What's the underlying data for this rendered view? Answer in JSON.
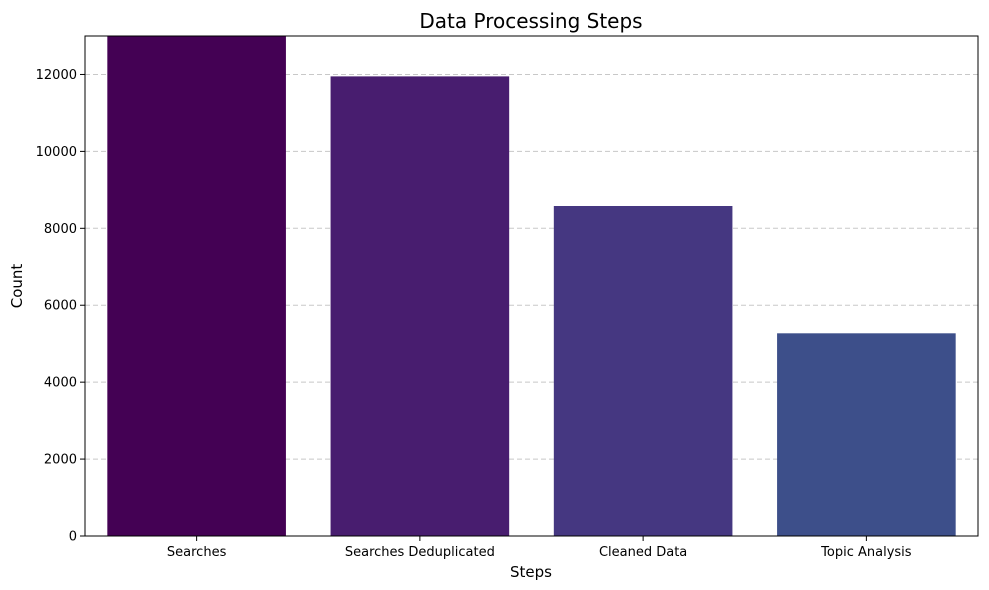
{
  "chart_data": {
    "type": "bar",
    "title": "Data Processing Steps",
    "xlabel": "Steps",
    "ylabel": "Count",
    "categories": [
      "Searches",
      "Searches Deduplicated",
      "Cleaned Data",
      "Topic Analysis"
    ],
    "values": [
      13000,
      11950,
      8580,
      5270
    ],
    "colors": [
      "#440154",
      "#481d6f",
      "#453781",
      "#3d4f8a"
    ],
    "ylim": [
      0,
      13000
    ],
    "yticks": [
      0,
      2000,
      4000,
      6000,
      8000,
      10000,
      12000
    ],
    "grid": {
      "y": true,
      "x": false,
      "color": "#c8c8c8",
      "style": "dashed"
    },
    "legend": "none"
  }
}
